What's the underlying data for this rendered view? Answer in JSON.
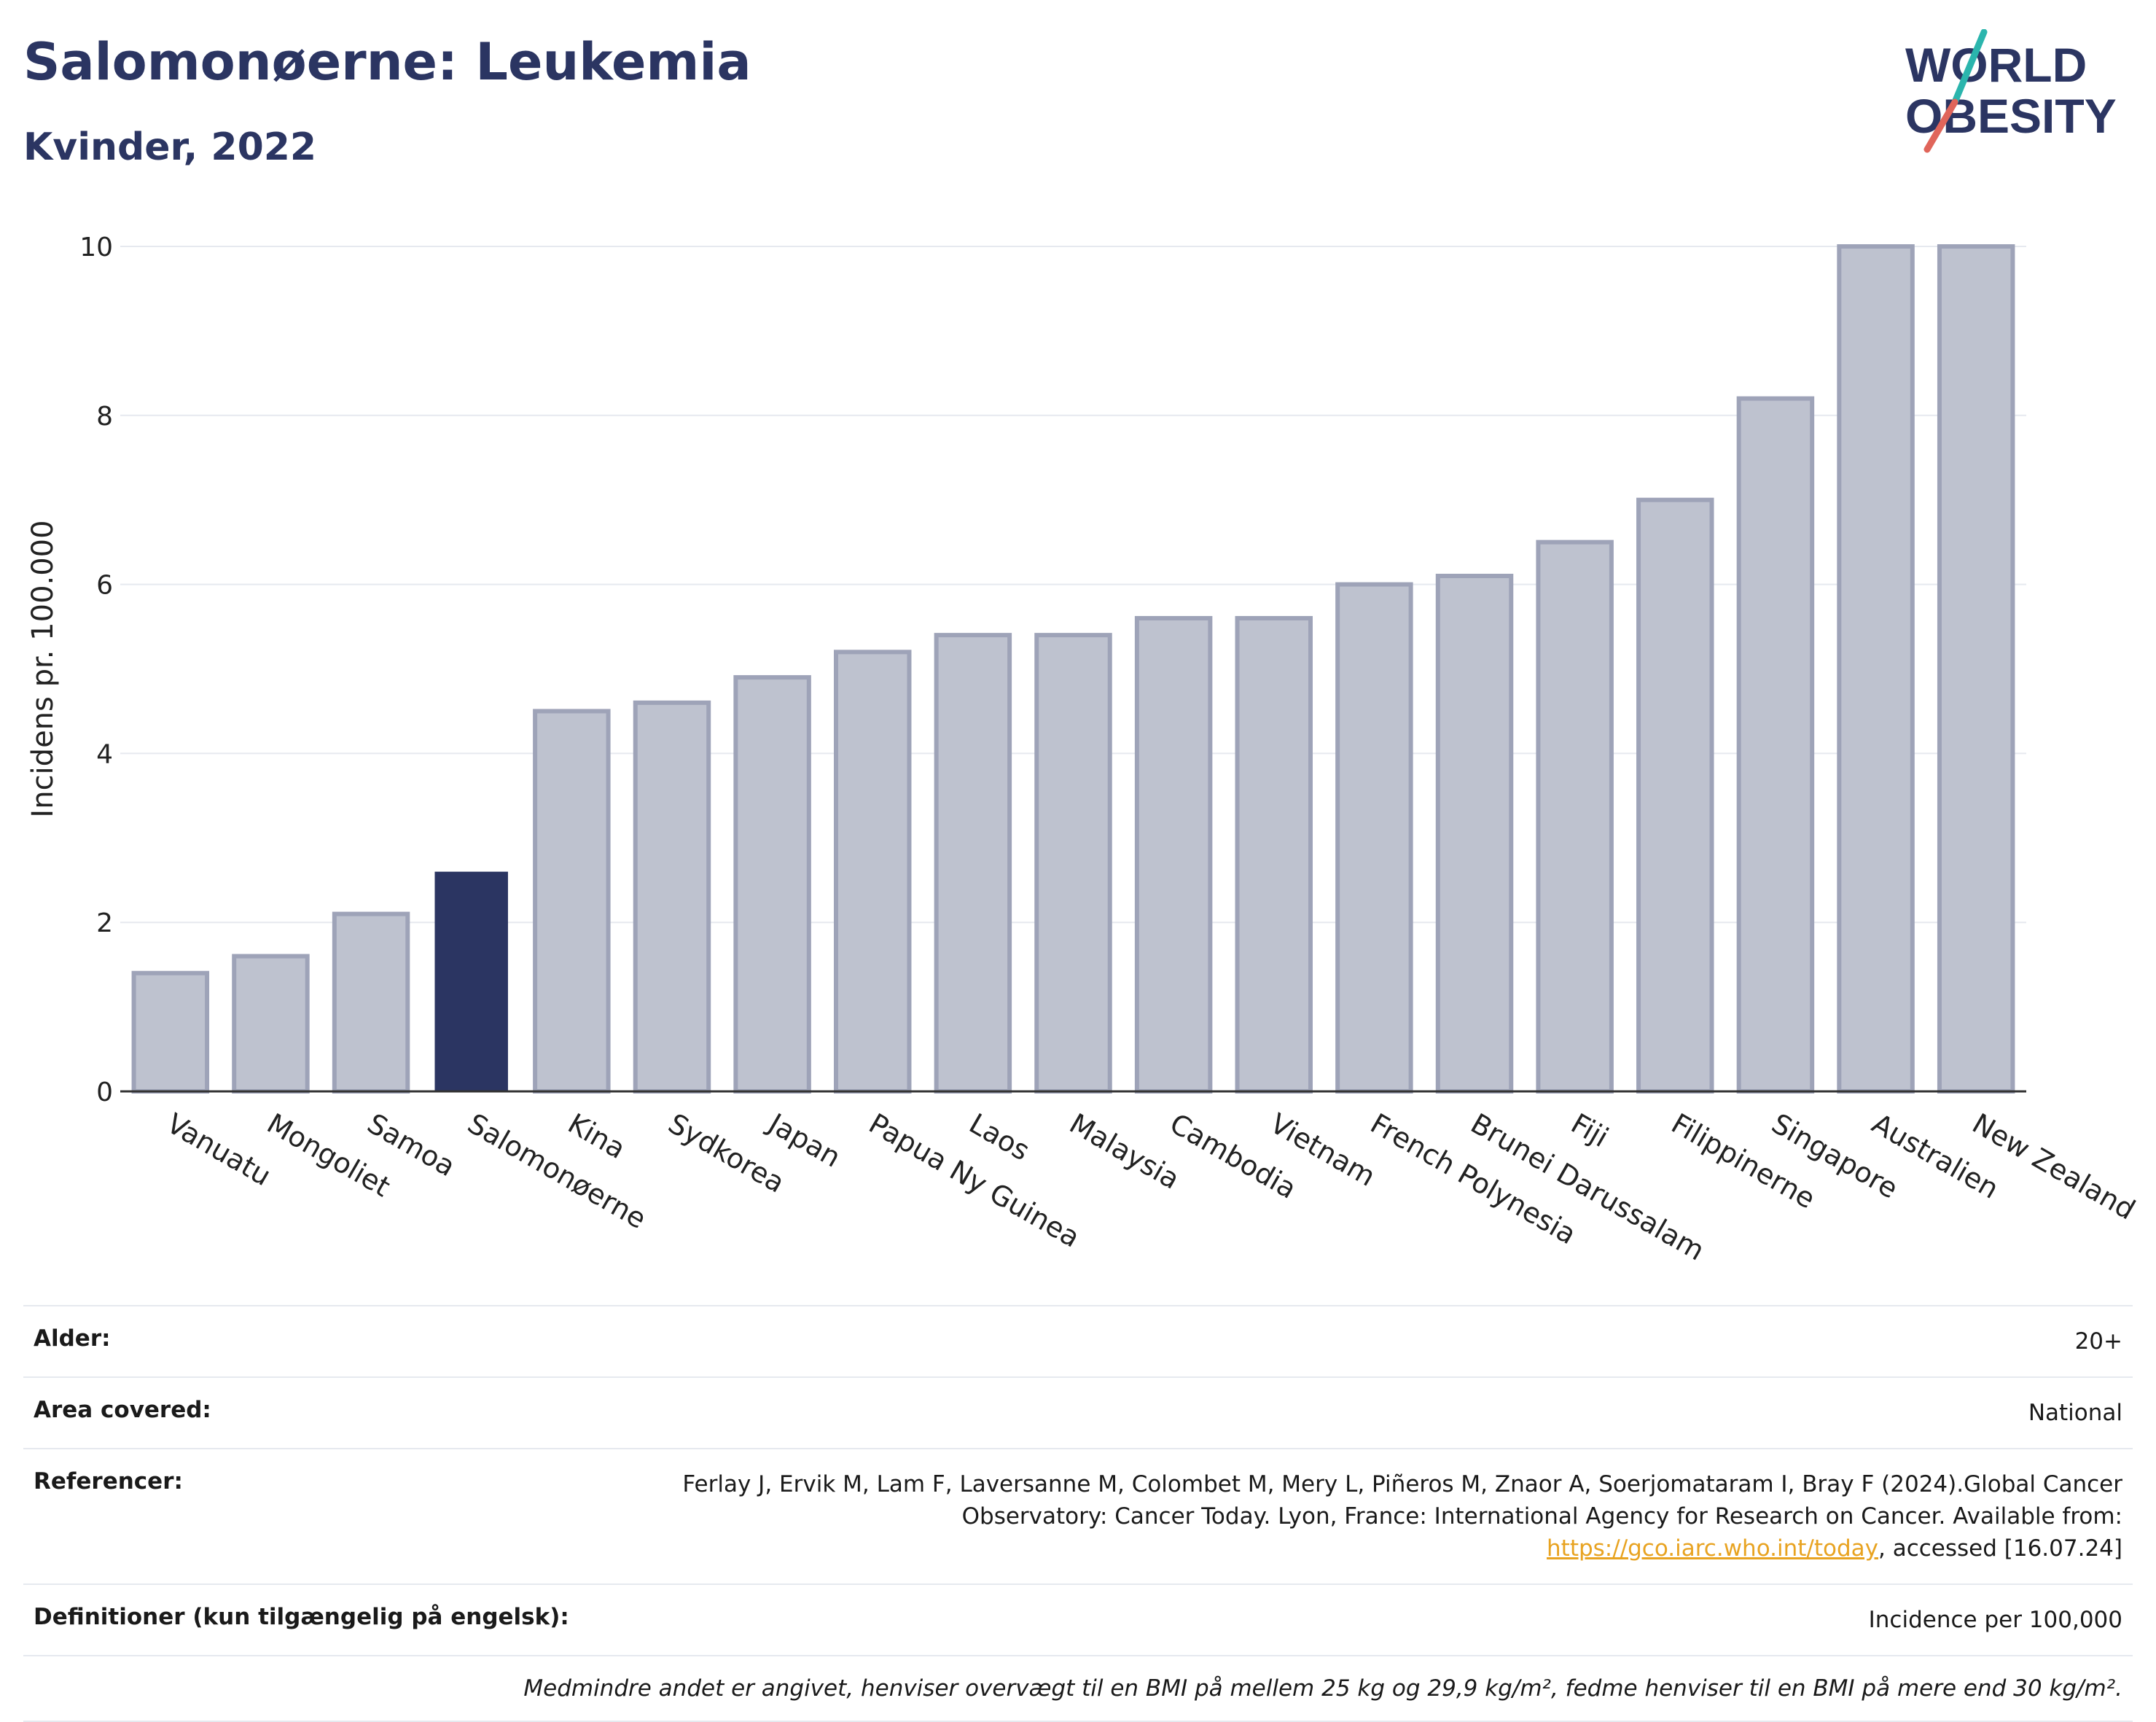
{
  "title": "Salomonøerne: Leukemia",
  "subtitle": "Kvinder, 2022",
  "logo": {
    "line1": "WORLD",
    "line2": "OBESITY",
    "accent_colors": [
      "#2bb5ad",
      "#e0655a"
    ]
  },
  "colors": {
    "highlight": "#2b3562",
    "bar": "#bec2cf",
    "bar_stroke": "#9ea3b8",
    "axis": "#333333",
    "grid": "#e6e9ef"
  },
  "chart_data": {
    "type": "bar",
    "ylabel": "Incidens pr. 100.000",
    "ylim": [
      0,
      10
    ],
    "yticks": [
      0,
      2,
      4,
      6,
      8,
      10
    ],
    "highlight": "Salomonøerne",
    "categories": [
      "Vanuatu",
      "Mongoliet",
      "Samoa",
      "Salomonøerne",
      "Kina",
      "Sydkorea",
      "Japan",
      "Papua Ny Guinea",
      "Laos",
      "Malaysia",
      "Cambodia",
      "Vietnam",
      "French Polynesia",
      "Brunei Darussalam",
      "Fiji",
      "Filippinerne",
      "Singapore",
      "Australien",
      "New Zealand"
    ],
    "values": [
      1.4,
      1.6,
      2.1,
      2.6,
      4.5,
      4.6,
      4.9,
      5.2,
      5.4,
      5.4,
      5.6,
      5.6,
      6.0,
      6.1,
      6.5,
      7.0,
      8.2,
      10.0,
      10.0
    ]
  },
  "meta": {
    "age_label": "Alder:",
    "age_value": "20+",
    "area_label": "Area covered:",
    "area_value": "National",
    "ref_label": "Referencer:",
    "ref_text_1": "Ferlay J, Ervik M, Lam F, Laversanne M, Colombet M, Mery L, Piñeros M, Znaor A, Soerjomataram I, Bray F (2024).Global Cancer Observatory: Cancer Today. Lyon, France: International Agency for Research on Cancer. Available from: ",
    "ref_link": "https://gco.iarc.who.int/today",
    "ref_text_2": ", accessed [16.07.24]",
    "def_label": "Definitioner (kun tilgængelig på engelsk):",
    "def_value": "Incidence per 100,000",
    "note": "Medmindre andet er angivet, henviser overvægt til en BMI på mellem 25 kg og 29,9 kg/m², fedme henviser til en BMI på mere end 30 kg/m²."
  }
}
